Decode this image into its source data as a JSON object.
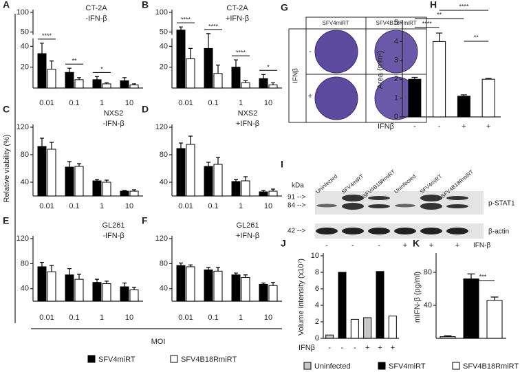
{
  "chart_data": [
    {
      "type": "bar",
      "label": "A",
      "title": "CT-2A",
      "subtitle": "-IFN-β",
      "categories": [
        "0.01",
        "0.1",
        "1",
        "10"
      ],
      "series": [
        {
          "name": "SFV4miRT",
          "color": "#000000",
          "values": [
            33,
            15,
            8,
            7
          ],
          "errors": [
            10,
            4,
            3,
            3
          ]
        },
        {
          "name": "SFV4B18RmiRT",
          "color": "#ffffff",
          "values": [
            18,
            8,
            4,
            3
          ],
          "errors": [
            8,
            2,
            1,
            1
          ]
        }
      ],
      "ylim": [
        0,
        100
      ],
      "yticks": [
        20,
        40,
        50,
        100
      ],
      "ybreak": [
        45,
        50
      ],
      "annotations": [
        "****",
        "**",
        "*",
        null
      ]
    },
    {
      "type": "bar",
      "label": "B",
      "title": "CT-2A",
      "subtitle": "+IFN-β",
      "categories": [
        "0.01",
        "0.1",
        "1",
        "10"
      ],
      "series": [
        {
          "name": "SFV4miRT",
          "color": "#000000",
          "values": [
            55,
            38,
            20,
            9
          ],
          "errors": [
            8,
            8,
            7,
            4
          ]
        },
        {
          "name": "SFV4B18RmiRT",
          "color": "#ffffff",
          "values": [
            28,
            14,
            5,
            3
          ],
          "errors": [
            10,
            8,
            2,
            2
          ]
        }
      ],
      "ylim": [
        0,
        100
      ],
      "yticks": [
        20,
        40,
        50,
        100
      ],
      "ybreak": [
        45,
        50
      ],
      "annotations": [
        "****",
        "****",
        "****",
        "*"
      ]
    },
    {
      "type": "bar",
      "label": "C",
      "title": "NXS2",
      "subtitle": "-IFN-β",
      "categories": [
        "0.01",
        "0.1",
        "1",
        "10"
      ],
      "series": [
        {
          "name": "SFV4miRT",
          "color": "#000000",
          "values": [
            92,
            62,
            42,
            27
          ],
          "errors": [
            12,
            8,
            2,
            1
          ]
        },
        {
          "name": "SFV4B18RmiRT",
          "color": "#ffffff",
          "values": [
            88,
            63,
            40,
            27
          ],
          "errors": [
            10,
            4,
            3,
            2
          ]
        }
      ],
      "ylim": [
        20,
        120
      ],
      "yticks": [
        40,
        80,
        120
      ]
    },
    {
      "type": "bar",
      "label": "D",
      "title": "NXS2",
      "subtitle": "+IFN-β",
      "categories": [
        "0.01",
        "0.1",
        "1",
        "10"
      ],
      "series": [
        {
          "name": "SFV4miRT",
          "color": "#000000",
          "values": [
            89,
            63,
            41,
            26
          ],
          "errors": [
            8,
            6,
            3,
            2
          ]
        },
        {
          "name": "SFV4B18RmiRT",
          "color": "#ffffff",
          "values": [
            95,
            66,
            42,
            27
          ],
          "errors": [
            12,
            10,
            6,
            3
          ]
        }
      ],
      "ylim": [
        20,
        120
      ],
      "yticks": [
        40,
        80,
        120
      ]
    },
    {
      "type": "bar",
      "label": "E",
      "title": "GL261",
      "subtitle": "-IFN-β",
      "categories": [
        "0.01",
        "0.1",
        "1",
        "10"
      ],
      "series": [
        {
          "name": "SFV4miRT",
          "color": "#000000",
          "values": [
            75,
            62,
            50,
            43
          ],
          "errors": [
            7,
            10,
            5,
            6
          ]
        },
        {
          "name": "SFV4B18RmiRT",
          "color": "#ffffff",
          "values": [
            67,
            55,
            48,
            38
          ],
          "errors": [
            10,
            8,
            4,
            4
          ]
        }
      ],
      "ylim": [
        20,
        120
      ],
      "yticks": [
        40,
        80,
        120
      ]
    },
    {
      "type": "bar",
      "label": "F",
      "title": "GL261",
      "subtitle": "+IFN-β",
      "categories": [
        "0.01",
        "0.1",
        "1",
        "10"
      ],
      "series": [
        {
          "name": "SFV4miRT",
          "color": "#000000",
          "values": [
            77,
            70,
            62,
            47
          ],
          "errors": [
            4,
            4,
            3,
            2
          ]
        },
        {
          "name": "SFV4B18RmiRT",
          "color": "#ffffff",
          "values": [
            75,
            68,
            58,
            45
          ],
          "errors": [
            3,
            6,
            4,
            5
          ]
        }
      ],
      "ylim": [
        20,
        120
      ],
      "yticks": [
        40,
        80,
        120
      ]
    },
    {
      "type": "bar",
      "label": "H",
      "y_label": "Area (mm²)",
      "x_label": "IFNβ",
      "categories": [
        "-",
        "-",
        "+",
        "+"
      ],
      "values": [
        2,
        4,
        1.1,
        2
      ],
      "errors": [
        0.1,
        0.45,
        0.07,
        0.04
      ],
      "colors": [
        "#000000",
        "#ffffff",
        "#000000",
        "#ffffff"
      ],
      "ylim": [
        0,
        5
      ],
      "yticks": [
        0,
        1,
        2,
        3,
        4,
        5
      ],
      "annotations": [
        "****",
        "**",
        "****",
        "**"
      ]
    },
    {
      "type": "bar",
      "label": "J",
      "y_label": "Volume intensity (x10⁷)",
      "x_label": "IFNβ",
      "categories": [
        "-",
        "-",
        "-",
        "+",
        "+",
        "+"
      ],
      "values": [
        0.4,
        8,
        2.3,
        2.5,
        8.1,
        2.7
      ],
      "colors": [
        "#c8c8c8",
        "#000000",
        "#ffffff",
        "#c8c8c8",
        "#000000",
        "#ffffff"
      ],
      "ylim": [
        0,
        10
      ],
      "yticks": [
        0,
        2,
        4,
        6,
        8,
        10
      ],
      "legend": [
        {
          "name": "Uninfected",
          "color": "#c8c8c8"
        },
        {
          "name": "SFV4miRT",
          "color": "#000000"
        },
        {
          "name": "SFV4B18RmiRT",
          "color": "#ffffff"
        }
      ]
    },
    {
      "type": "bar",
      "label": "K",
      "y_label": "mIFN-β (pg/ml)",
      "categories": [
        null,
        null,
        null
      ],
      "values": [
        2,
        72,
        46
      ],
      "errors": [
        1,
        6,
        4
      ],
      "colors": [
        "#c8c8c8",
        "#000000",
        "#ffffff"
      ],
      "ylim": [
        0,
        100
      ],
      "yticks": [
        40,
        80
      ],
      "annotations": [
        null,
        "***",
        null
      ]
    }
  ],
  "figure": {
    "y_label": "Relative viability (%)",
    "x_label": "MOI"
  },
  "panel_G": {
    "label": "G",
    "columns": [
      "SFV4miRT",
      "SFV4B18RmiRT"
    ],
    "row_title": "IFNβ",
    "rows": [
      "-",
      "+"
    ]
  },
  "panel_I": {
    "label": "I",
    "lanes": [
      "Uninfected",
      "SFV4miRT",
      "SFV4B18RmiRT",
      "Uninfected",
      "SFV4miRT",
      "SFV4B18RmiRT"
    ],
    "kda_title": "kDa",
    "markers": [
      "91 -->",
      "84 -->",
      "42 -->"
    ],
    "bands": [
      "p-STAT1",
      "β-actin"
    ],
    "treatment": [
      "-",
      "-",
      "-",
      "+",
      "+",
      "+"
    ],
    "treatment_label": "IFN-β"
  }
}
